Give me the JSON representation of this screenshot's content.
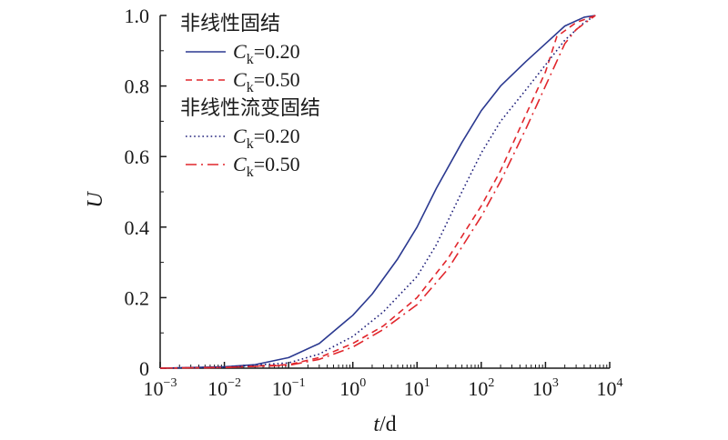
{
  "chart_data": {
    "type": "line",
    "xscale": "log",
    "xlim": [
      0.001,
      10000
    ],
    "ylim": [
      0,
      1.0
    ],
    "xlabel": "t/d",
    "ylabel": "U",
    "grid": false,
    "legend_position": "top-left",
    "x_ticks": [
      {
        "base": "10",
        "exp": "−3"
      },
      {
        "base": "10",
        "exp": "−2"
      },
      {
        "base": "10",
        "exp": "−1"
      },
      {
        "base": "10",
        "exp": "0"
      },
      {
        "base": "10",
        "exp": "1"
      },
      {
        "base": "10",
        "exp": "2"
      },
      {
        "base": "10",
        "exp": "3"
      },
      {
        "base": "10",
        "exp": "4"
      }
    ],
    "y_ticks": [
      "0",
      "0.2",
      "0.4",
      "0.6",
      "0.8",
      "1.0"
    ],
    "legend_groups": [
      "非线性固结",
      "非线性流变固结"
    ],
    "series": [
      {
        "name": "Ck=0.20",
        "legend_label": {
          "var": "C",
          "sub": "k",
          "rest": "=0.20"
        },
        "group": "非线性固结",
        "color": "#2b3990",
        "dash": "solid",
        "points": [
          [
            0.001,
            0
          ],
          [
            0.01,
            0.004
          ],
          [
            0.03,
            0.01
          ],
          [
            0.1,
            0.03
          ],
          [
            0.3,
            0.07
          ],
          [
            1,
            0.15
          ],
          [
            2,
            0.21
          ],
          [
            5,
            0.31
          ],
          [
            10,
            0.4
          ],
          [
            20,
            0.51
          ],
          [
            50,
            0.64
          ],
          [
            100,
            0.73
          ],
          [
            200,
            0.8
          ],
          [
            500,
            0.87
          ],
          [
            1000,
            0.92
          ],
          [
            2000,
            0.97
          ],
          [
            4000,
            0.995
          ],
          [
            6000,
            1.0
          ]
        ]
      },
      {
        "name": "Ck=0.50",
        "legend_label": {
          "var": "C",
          "sub": "k",
          "rest": "=0.50"
        },
        "group": "非线性固结",
        "color": "#e1262c",
        "dash": "dashed",
        "points": [
          [
            0.001,
            0
          ],
          [
            0.01,
            0.002
          ],
          [
            0.1,
            0.01
          ],
          [
            0.3,
            0.03
          ],
          [
            1,
            0.07
          ],
          [
            3,
            0.12
          ],
          [
            10,
            0.2
          ],
          [
            30,
            0.31
          ],
          [
            100,
            0.46
          ],
          [
            200,
            0.56
          ],
          [
            500,
            0.72
          ],
          [
            1000,
            0.84
          ],
          [
            1500,
            0.94
          ],
          [
            3000,
            0.98
          ],
          [
            6000,
            1.0
          ]
        ]
      },
      {
        "name": "Ck=0.20",
        "legend_label": {
          "var": "C",
          "sub": "k",
          "rest": "=0.20"
        },
        "group": "非线性流变固结",
        "color": "#1f1f7a",
        "dash": "dotted",
        "points": [
          [
            0.001,
            0
          ],
          [
            0.01,
            0.003
          ],
          [
            0.1,
            0.015
          ],
          [
            0.3,
            0.04
          ],
          [
            1,
            0.09
          ],
          [
            3,
            0.16
          ],
          [
            10,
            0.26
          ],
          [
            20,
            0.35
          ],
          [
            50,
            0.5
          ],
          [
            100,
            0.61
          ],
          [
            200,
            0.7
          ],
          [
            500,
            0.79
          ],
          [
            1000,
            0.86
          ],
          [
            2000,
            0.93
          ],
          [
            4000,
            0.98
          ],
          [
            6000,
            1.0
          ]
        ]
      },
      {
        "name": "Ck=0.50",
        "legend_label": {
          "var": "C",
          "sub": "k",
          "rest": "=0.50"
        },
        "group": "非线性流变固结",
        "color": "#e1262c",
        "dash": "dashdot",
        "points": [
          [
            0.001,
            0
          ],
          [
            0.01,
            0.002
          ],
          [
            0.1,
            0.008
          ],
          [
            0.3,
            0.025
          ],
          [
            1,
            0.06
          ],
          [
            3,
            0.11
          ],
          [
            10,
            0.18
          ],
          [
            30,
            0.28
          ],
          [
            100,
            0.43
          ],
          [
            200,
            0.53
          ],
          [
            500,
            0.68
          ],
          [
            1000,
            0.8
          ],
          [
            2000,
            0.92
          ],
          [
            3000,
            0.96
          ],
          [
            6000,
            1.0
          ]
        ]
      }
    ]
  }
}
